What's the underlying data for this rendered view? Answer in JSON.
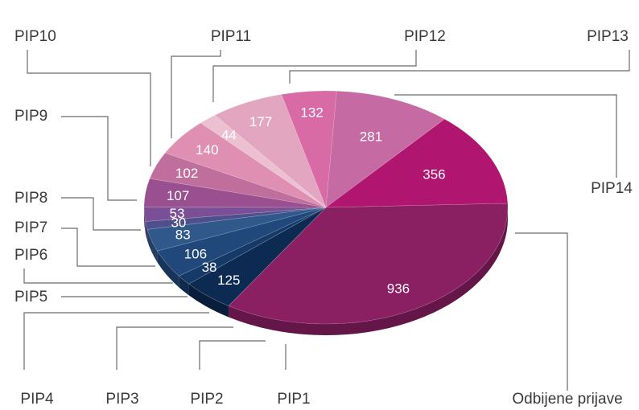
{
  "chart_data": {
    "type": "pie",
    "style": "3d-ellipse",
    "categories": [
      "Odbijene prijave",
      "PIP1",
      "PIP2",
      "PIP3",
      "PIP4",
      "PIP5",
      "PIP6",
      "PIP7",
      "PIP8",
      "PIP9",
      "PIP10",
      "PIP11",
      "PIP12",
      "PIP13",
      "PIP14"
    ],
    "values": [
      936,
      125,
      38,
      106,
      83,
      30,
      53,
      107,
      102,
      140,
      44,
      177,
      132,
      281,
      356
    ],
    "colors": [
      "#8a1f62",
      "#0c2a52",
      "#163a68",
      "#21487a",
      "#30588a",
      "#4e4f8c",
      "#7a4f96",
      "#9a4f90",
      "#c06f9d",
      "#de8fb2",
      "#ecc0d0",
      "#e3a6c1",
      "#d86aa6",
      "#c56aa2",
      "#b0166f"
    ],
    "legend": "leader-lines"
  }
}
